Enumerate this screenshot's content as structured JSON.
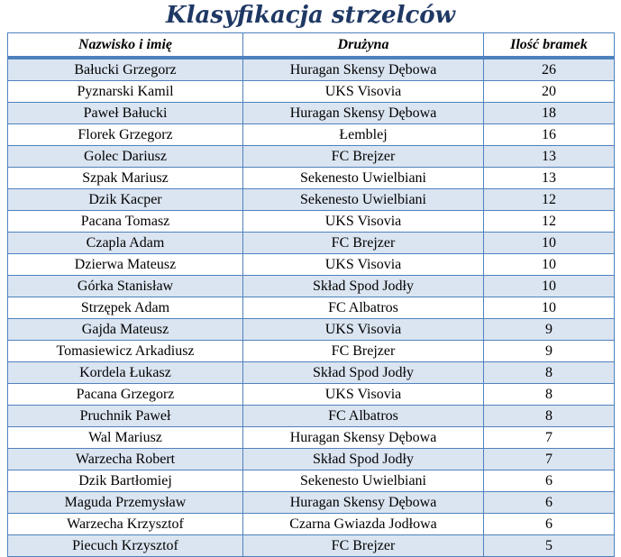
{
  "title": "Klasyfikacja strzelców",
  "colors": {
    "title_text": "#1F3864",
    "table_border": "#4F81BD",
    "row_alt_background": "#DBE5F1",
    "row_background": "#FFFFFF",
    "cell_text": "#000000"
  },
  "table": {
    "columns": [
      "Nazwisko i imię",
      "Drużyna",
      "Ilość bramek"
    ],
    "rows": [
      {
        "name": "Bałucki Grzegorz",
        "team": "Huragan Skensy Dębowa",
        "goals": "26"
      },
      {
        "name": "Pyznarski Kamil",
        "team": "UKS Visovia",
        "goals": "20"
      },
      {
        "name": "Paweł Bałucki",
        "team": "Huragan Skensy Dębowa",
        "goals": "18"
      },
      {
        "name": "Florek Grzegorz",
        "team": "Łemblej",
        "goals": "16"
      },
      {
        "name": "Golec Dariusz",
        "team": "FC Brejzer",
        "goals": "13"
      },
      {
        "name": "Szpak Mariusz",
        "team": "Sekenesto Uwielbiani",
        "goals": "13"
      },
      {
        "name": "Dzik Kacper",
        "team": "Sekenesto Uwielbiani",
        "goals": "12"
      },
      {
        "name": "Pacana Tomasz",
        "team": "UKS Visovia",
        "goals": "12"
      },
      {
        "name": "Czapla Adam",
        "team": "FC Brejzer",
        "goals": "10"
      },
      {
        "name": "Dzierwa Mateusz",
        "team": "UKS Visovia",
        "goals": "10"
      },
      {
        "name": "Górka Stanisław",
        "team": "Skład Spod Jodły",
        "goals": "10"
      },
      {
        "name": "Strzępek Adam",
        "team": "FC Albatros",
        "goals": "10"
      },
      {
        "name": "Gajda Mateusz",
        "team": "UKS Visovia",
        "goals": "9"
      },
      {
        "name": "Tomasiewicz Arkadiusz",
        "team": "FC Brejzer",
        "goals": "9"
      },
      {
        "name": "Kordela Łukasz",
        "team": "Skład Spod Jodły",
        "goals": "8"
      },
      {
        "name": "Pacana Grzegorz",
        "team": "UKS Visovia",
        "goals": "8"
      },
      {
        "name": "Pruchnik Paweł",
        "team": "FC Albatros",
        "goals": "8"
      },
      {
        "name": "Wal Mariusz",
        "team": "Huragan Skensy Dębowa",
        "goals": "7"
      },
      {
        "name": "Warzecha Robert",
        "team": "Skład Spod Jodły",
        "goals": "7"
      },
      {
        "name": "Dzik Bartłomiej",
        "team": "Sekenesto Uwielbiani",
        "goals": "6"
      },
      {
        "name": "Maguda Przemysław",
        "team": "Huragan Skensy Dębowa",
        "goals": "6"
      },
      {
        "name": "Warzecha Krzysztof",
        "team": "Czarna Gwiazda Jodłowa",
        "goals": "6"
      },
      {
        "name": "Piecuch Krzysztof",
        "team": "FC Brejzer",
        "goals": "5"
      }
    ]
  }
}
